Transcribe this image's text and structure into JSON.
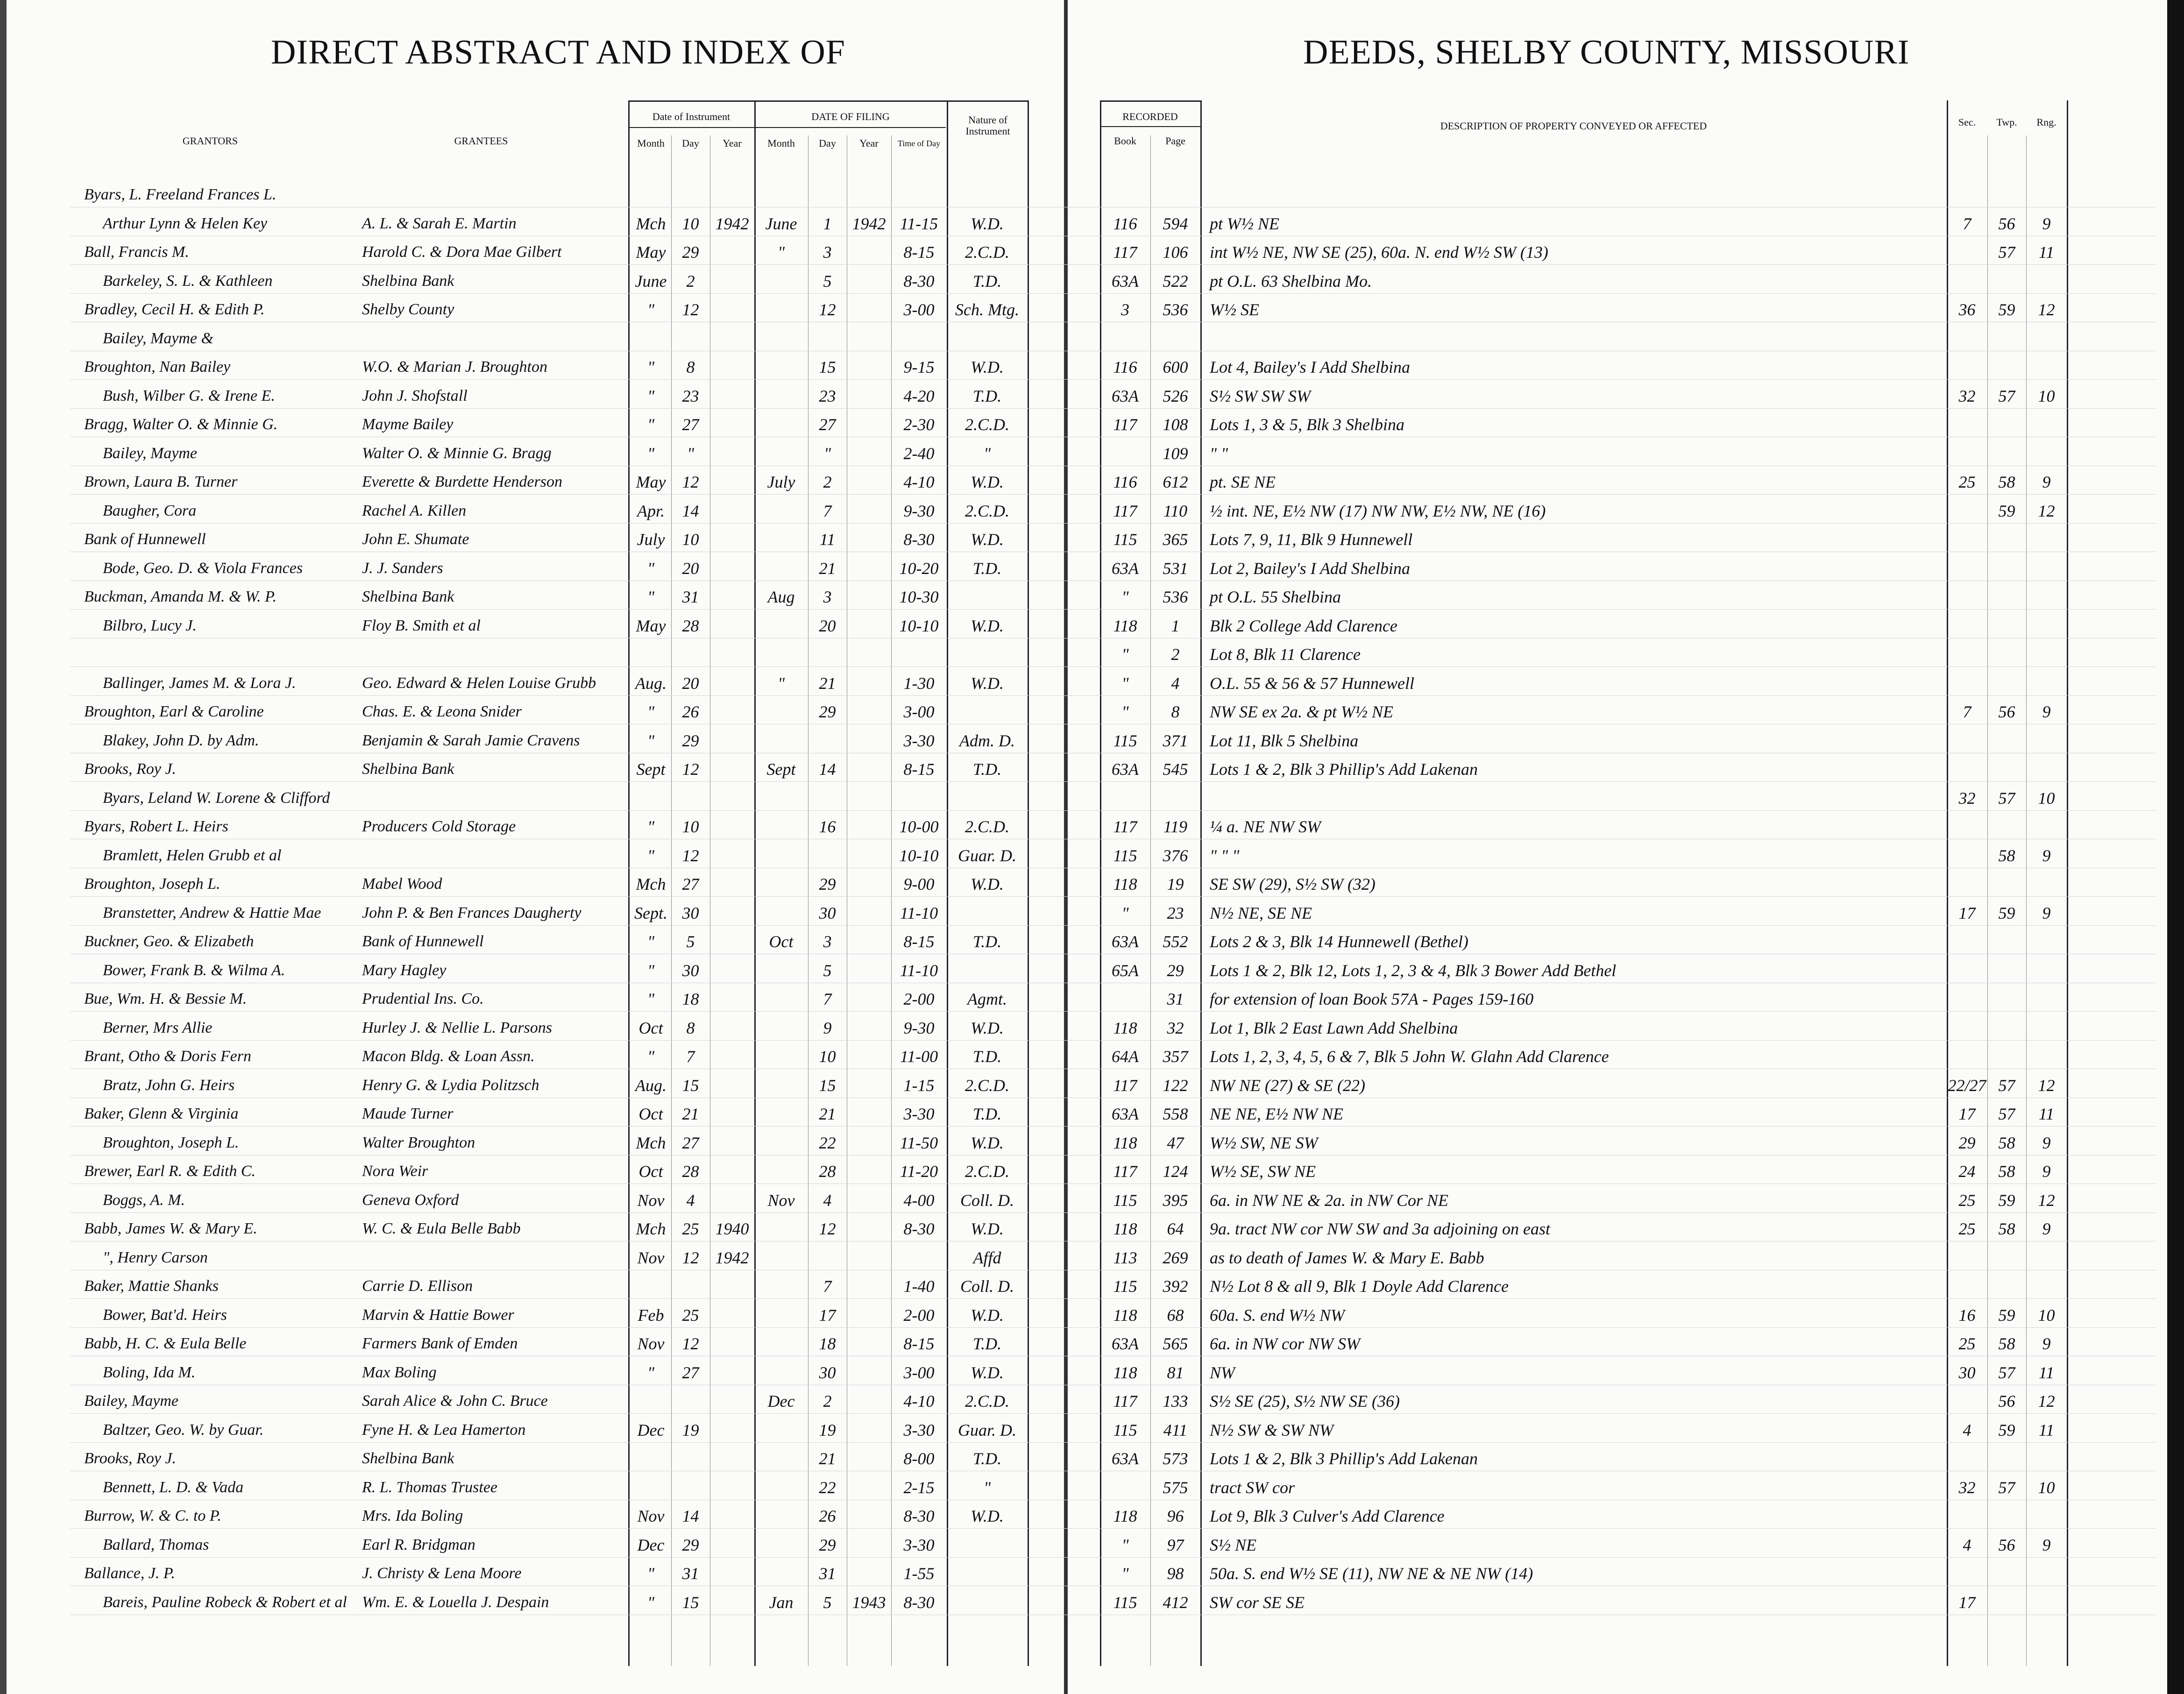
{
  "left_title": "DIRECT ABSTRACT AND INDEX OF",
  "right_title": "DEEDS, SHELBY COUNTY, MISSOURI",
  "headers": {
    "grantors": "GRANTORS",
    "grantees": "GRANTEES",
    "date_of_instrument": "Date of Instrument",
    "date_of_filing": "DATE OF FILING",
    "month": "Month",
    "day": "Day",
    "year": "Year",
    "time_of_day": "Time of Day",
    "nature": "Nature of Instrument",
    "recorded": "RECORDED",
    "book": "Book",
    "page": "Page",
    "description": "DESCRIPTION OF PROPERTY CONVEYED OR AFFECTED",
    "sec": "Sec.",
    "twp": "Twp.",
    "rng": "Rng."
  },
  "columns": [
    "grantor",
    "grantee",
    "im",
    "id",
    "iy",
    "fm",
    "fd",
    "fy",
    "time",
    "nature",
    "book",
    "page",
    "desc",
    "sec",
    "twp",
    "rng"
  ],
  "rows": [
    [
      "Byars, L. Freeland Frances L.",
      "",
      "",
      "",
      "",
      "",
      "",
      "",
      "",
      "",
      "",
      "",
      "",
      "",
      "",
      ""
    ],
    [
      "Arthur Lynn & Helen Key",
      "A. L. & Sarah E. Martin",
      "Mch",
      "10",
      "1942",
      "June",
      "1",
      "1942",
      "11-15",
      "W.D.",
      "116",
      "594",
      "pt W½ NE",
      "7",
      "56",
      "9"
    ],
    [
      "Ball, Francis M.",
      "Harold C. & Dora Mae Gilbert",
      "May",
      "29",
      "",
      "\"",
      "3",
      "",
      "8-15",
      "2.C.D.",
      "117",
      "106",
      "int W½ NE, NW SE (25), 60a. N. end W½ SW (13)",
      "",
      "57",
      "11"
    ],
    [
      "Barkeley, S. L. & Kathleen",
      "Shelbina Bank",
      "June",
      "2",
      "",
      "",
      "5",
      "",
      "8-30",
      "T.D.",
      "63A",
      "522",
      "pt O.L. 63 Shelbina Mo.",
      "",
      "",
      ""
    ],
    [
      "Bradley, Cecil H. & Edith P.",
      "Shelby County",
      "\"",
      "12",
      "",
      "",
      "12",
      "",
      "3-00",
      "Sch. Mtg.",
      "3",
      "536",
      "W½ SE",
      "36",
      "59",
      "12"
    ],
    [
      "Bailey, Mayme &",
      "",
      "",
      "",
      "",
      "",
      "",
      "",
      "",
      "",
      "",
      "",
      "",
      "",
      "",
      ""
    ],
    [
      "Broughton, Nan Bailey",
      "W.O. & Marian J. Broughton",
      "\"",
      "8",
      "",
      "",
      "15",
      "",
      "9-15",
      "W.D.",
      "116",
      "600",
      "Lot 4, Bailey's I Add Shelbina",
      "",
      "",
      ""
    ],
    [
      "Bush, Wilber G. & Irene E.",
      "John J. Shofstall",
      "\"",
      "23",
      "",
      "",
      "23",
      "",
      "4-20",
      "T.D.",
      "63A",
      "526",
      "S½ SW SW SW",
      "32",
      "57",
      "10"
    ],
    [
      "Bragg, Walter O. & Minnie G.",
      "Mayme Bailey",
      "\"",
      "27",
      "",
      "",
      "27",
      "",
      "2-30",
      "2.C.D.",
      "117",
      "108",
      "Lots 1, 3 & 5, Blk 3 Shelbina",
      "",
      "",
      ""
    ],
    [
      "Bailey, Mayme",
      "Walter O. & Minnie G. Bragg",
      "\"",
      "\"",
      "",
      "",
      "\"",
      "",
      "2-40",
      "\"",
      "",
      "109",
      "\"  \"",
      "",
      "",
      ""
    ],
    [
      "Brown, Laura B. Turner",
      "Everette & Burdette Henderson",
      "May",
      "12",
      "",
      "July",
      "2",
      "",
      "4-10",
      "W.D.",
      "116",
      "612",
      "pt. SE NE",
      "25",
      "58",
      "9"
    ],
    [
      "Baugher, Cora",
      "Rachel A. Killen",
      "Apr.",
      "14",
      "",
      "",
      "7",
      "",
      "9-30",
      "2.C.D.",
      "117",
      "110",
      "½ int. NE, E½ NW (17) NW NW, E½ NW, NE (16)",
      "",
      "59",
      "12"
    ],
    [
      "Bank of Hunnewell",
      "John E. Shumate",
      "July",
      "10",
      "",
      "",
      "11",
      "",
      "8-30",
      "W.D.",
      "115",
      "365",
      "Lots 7, 9, 11, Blk 9 Hunnewell",
      "",
      "",
      ""
    ],
    [
      "Bode, Geo. D. & Viola Frances",
      "J. J. Sanders",
      "\"",
      "20",
      "",
      "",
      "21",
      "",
      "10-20",
      "T.D.",
      "63A",
      "531",
      "Lot 2, Bailey's I Add Shelbina",
      "",
      "",
      ""
    ],
    [
      "Buckman, Amanda M. & W. P.",
      "Shelbina Bank",
      "\"",
      "31",
      "",
      "Aug",
      "3",
      "",
      "10-30",
      "",
      "\"",
      "536",
      "pt O.L. 55 Shelbina",
      "",
      "",
      ""
    ],
    [
      "Bilbro, Lucy J.",
      "Floy B. Smith et al",
      "May",
      "28",
      "",
      "",
      "20",
      "",
      "10-10",
      "W.D.",
      "118",
      "1",
      "Blk 2 College Add Clarence",
      "",
      "",
      ""
    ],
    [
      "",
      "",
      "",
      "",
      "",
      "",
      "",
      "",
      "",
      "",
      "\"",
      "2",
      "Lot 8, Blk 11 Clarence",
      "",
      "",
      ""
    ],
    [
      "Ballinger, James M. & Lora J.",
      "Geo. Edward & Helen Louise Grubb",
      "Aug.",
      "20",
      "",
      "\"",
      "21",
      "",
      "1-30",
      "W.D.",
      "\"",
      "4",
      "O.L. 55 & 56 & 57 Hunnewell",
      "",
      "",
      ""
    ],
    [
      "Broughton, Earl & Caroline",
      "Chas. E. & Leona Snider",
      "\"",
      "26",
      "",
      "",
      "29",
      "",
      "3-00",
      "",
      "\"",
      "8",
      "NW SE ex 2a. & pt W½ NE",
      "7",
      "56",
      "9"
    ],
    [
      "Blakey, John D. by Adm.",
      "Benjamin & Sarah Jamie Cravens",
      "\"",
      "29",
      "",
      "",
      "",
      "",
      "3-30",
      "Adm. D.",
      "115",
      "371",
      "Lot 11, Blk 5 Shelbina",
      "",
      "",
      ""
    ],
    [
      "Brooks, Roy J.",
      "Shelbina Bank",
      "Sept",
      "12",
      "",
      "Sept",
      "14",
      "",
      "8-15",
      "T.D.",
      "63A",
      "545",
      "Lots 1 & 2, Blk 3 Phillip's Add Lakenan",
      "",
      "",
      ""
    ],
    [
      "Byars, Leland W. Lorene & Clifford",
      "",
      "",
      "",
      "",
      "",
      "",
      "",
      "",
      "",
      "",
      "",
      "",
      "32",
      "57",
      "10"
    ],
    [
      "Byars, Robert L. Heirs",
      "Producers Cold Storage",
      "\"",
      "10",
      "",
      "",
      "16",
      "",
      "10-00",
      "2.C.D.",
      "117",
      "119",
      "¼ a. NE NW SW",
      "",
      "",
      ""
    ],
    [
      "Bramlett, Helen Grubb et al",
      "",
      "\"",
      "12",
      "",
      "",
      "",
      "",
      "10-10",
      "Guar. D.",
      "115",
      "376",
      "\"  \"  \"",
      "",
      "58",
      "9"
    ],
    [
      "Broughton, Joseph L.",
      "Mabel Wood",
      "Mch",
      "27",
      "",
      "",
      "29",
      "",
      "9-00",
      "W.D.",
      "118",
      "19",
      "SE SW (29), S½ SW (32)",
      "",
      "",
      ""
    ],
    [
      "Branstetter, Andrew & Hattie Mae",
      "John P. & Ben Frances Daugherty",
      "Sept.",
      "30",
      "",
      "",
      "30",
      "",
      "11-10",
      "",
      "\"",
      "23",
      "N½ NE, SE NE",
      "17",
      "59",
      "9"
    ],
    [
      "Buckner, Geo. & Elizabeth",
      "Bank of Hunnewell",
      "\"",
      "5",
      "",
      "Oct",
      "3",
      "",
      "8-15",
      "T.D.",
      "63A",
      "552",
      "Lots 2 & 3, Blk 14 Hunnewell (Bethel)",
      "",
      "",
      ""
    ],
    [
      "Bower, Frank B. & Wilma A.",
      "Mary Hagley",
      "\"",
      "30",
      "",
      "",
      "5",
      "",
      "11-10",
      "",
      "65A",
      "29",
      "Lots 1 & 2, Blk 12, Lots 1, 2, 3 & 4, Blk 3 Bower Add Bethel",
      "",
      "",
      ""
    ],
    [
      "Bue, Wm. H. & Bessie M.",
      "Prudential Ins. Co.",
      "\"",
      "18",
      "",
      "",
      "7",
      "",
      "2-00",
      "Agmt.",
      "",
      "31",
      "for extension of loan Book 57A - Pages 159-160",
      "",
      "",
      ""
    ],
    [
      "Berner, Mrs Allie",
      "Hurley J. & Nellie L. Parsons",
      "Oct",
      "8",
      "",
      "",
      "9",
      "",
      "9-30",
      "W.D.",
      "118",
      "32",
      "Lot 1, Blk 2  East Lawn Add Shelbina",
      "",
      "",
      ""
    ],
    [
      "Brant, Otho & Doris Fern",
      "Macon Bldg. & Loan Assn.",
      "\"",
      "7",
      "",
      "",
      "10",
      "",
      "11-00",
      "T.D.",
      "64A",
      "357",
      "Lots 1, 2, 3, 4, 5, 6 & 7, Blk 5 John W. Glahn Add Clarence",
      "",
      "",
      ""
    ],
    [
      "Bratz, John G. Heirs",
      "Henry G. & Lydia Politzsch",
      "Aug.",
      "15",
      "",
      "",
      "15",
      "",
      "1-15",
      "2.C.D.",
      "117",
      "122",
      "NW NE (27) & SE (22)",
      "22/27",
      "57",
      "12"
    ],
    [
      "Baker, Glenn & Virginia",
      "Maude Turner",
      "Oct",
      "21",
      "",
      "",
      "21",
      "",
      "3-30",
      "T.D.",
      "63A",
      "558",
      "NE NE, E½ NW NE",
      "17",
      "57",
      "11"
    ],
    [
      "Broughton, Joseph L.",
      "Walter Broughton",
      "Mch",
      "27",
      "",
      "",
      "22",
      "",
      "11-50",
      "W.D.",
      "118",
      "47",
      "W½ SW, NE SW",
      "29",
      "58",
      "9"
    ],
    [
      "Brewer, Earl R. & Edith C.",
      "Nora Weir",
      "Oct",
      "28",
      "",
      "",
      "28",
      "",
      "11-20",
      "2.C.D.",
      "117",
      "124",
      "W½ SE, SW NE",
      "24",
      "58",
      "9"
    ],
    [
      "Boggs, A. M.",
      "Geneva Oxford",
      "Nov",
      "4",
      "",
      "Nov",
      "4",
      "",
      "4-00",
      "Coll. D.",
      "115",
      "395",
      "6a. in NW NE & 2a. in NW Cor NE",
      "25",
      "59",
      "12"
    ],
    [
      "Babb, James W. & Mary E.",
      "W. C. & Eula Belle Babb",
      "Mch",
      "25",
      "1940",
      "",
      "12",
      "",
      "8-30",
      "W.D.",
      "118",
      "64",
      "9a. tract NW cor NW SW and 3a adjoining on east",
      "25",
      "58",
      "9"
    ],
    [
      "\", Henry Carson",
      "",
      "Nov",
      "12",
      "1942",
      "",
      "",
      "",
      "",
      "Affd",
      "113",
      "269",
      "as to death of James W. & Mary E. Babb",
      "",
      "",
      ""
    ],
    [
      "Baker, Mattie Shanks",
      "Carrie D. Ellison",
      "",
      "",
      "",
      "",
      "7",
      "",
      "1-40",
      "Coll. D.",
      "115",
      "392",
      "N½ Lot 8 & all 9, Blk 1 Doyle Add Clarence",
      "",
      "",
      ""
    ],
    [
      "Bower, Bat'd. Heirs",
      "Marvin & Hattie Bower",
      "Feb",
      "25",
      "",
      "",
      "17",
      "",
      "2-00",
      "W.D.",
      "118",
      "68",
      "60a. S. end W½ NW",
      "16",
      "59",
      "10"
    ],
    [
      "Babb, H. C. & Eula Belle",
      "Farmers Bank of Emden",
      "Nov",
      "12",
      "",
      "",
      "18",
      "",
      "8-15",
      "T.D.",
      "63A",
      "565",
      "6a. in NW cor NW SW",
      "25",
      "58",
      "9"
    ],
    [
      "Boling, Ida M.",
      "Max Boling",
      "\"",
      "27",
      "",
      "",
      "30",
      "",
      "3-00",
      "W.D.",
      "118",
      "81",
      "NW",
      "30",
      "57",
      "11"
    ],
    [
      "Bailey, Mayme",
      "Sarah Alice & John C. Bruce",
      "",
      "",
      "",
      "Dec",
      "2",
      "",
      "4-10",
      "2.C.D.",
      "117",
      "133",
      "S½ SE (25), S½ NW SE (36)",
      "",
      "56",
      "12"
    ],
    [
      "Baltzer, Geo. W. by Guar.",
      "Fyne H. & Lea Hamerton",
      "Dec",
      "19",
      "",
      "",
      "19",
      "",
      "3-30",
      "Guar. D.",
      "115",
      "411",
      "N½ SW & SW NW",
      "4",
      "59",
      "11"
    ],
    [
      "Brooks, Roy J.",
      "Shelbina Bank",
      "",
      "",
      "",
      "",
      "21",
      "",
      "8-00",
      "T.D.",
      "63A",
      "573",
      "Lots 1 & 2, Blk 3 Phillip's Add Lakenan",
      "",
      "",
      ""
    ],
    [
      "Bennett, L. D. & Vada",
      "R. L. Thomas Trustee",
      "",
      "",
      "",
      "",
      "22",
      "",
      "2-15",
      "\"",
      "",
      "575",
      "tract SW cor",
      "32",
      "57",
      "10"
    ],
    [
      "Burrow, W. & C. to P.",
      "Mrs. Ida Boling",
      "Nov",
      "14",
      "",
      "",
      "26",
      "",
      "8-30",
      "W.D.",
      "118",
      "96",
      "Lot 9, Blk 3  Culver's Add Clarence",
      "",
      "",
      ""
    ],
    [
      "Ballard, Thomas",
      "Earl R. Bridgman",
      "Dec",
      "29",
      "",
      "",
      "29",
      "",
      "3-30",
      "",
      "\"",
      "97",
      "S½ NE",
      "4",
      "56",
      "9"
    ],
    [
      "Ballance, J. P.",
      "J. Christy & Lena Moore",
      "\"",
      "31",
      "",
      "",
      "31",
      "",
      "1-55",
      "",
      "\"",
      "98",
      "50a. S. end W½ SE (11), NW NE & NE NW (14)",
      "",
      "",
      ""
    ],
    [
      "Bareis, Pauline Robeck & Robert et al",
      "Wm. E. & Louella J. Despain",
      "\"",
      "15",
      "",
      "Jan",
      "5",
      "1943",
      "8-30",
      "",
      "115",
      "412",
      "SW cor SE SE",
      "17",
      "",
      ""
    ]
  ]
}
